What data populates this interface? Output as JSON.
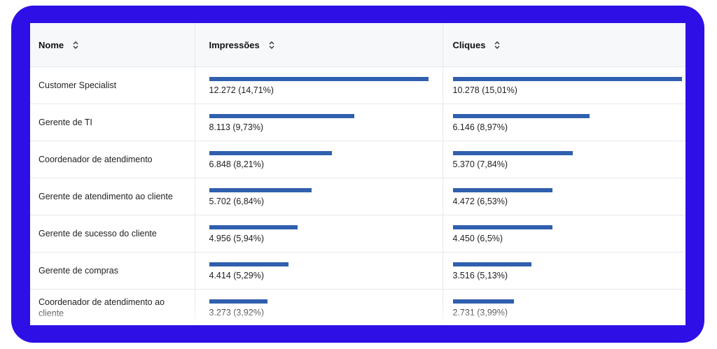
{
  "table": {
    "columns": [
      {
        "label": "Nome",
        "sort_icon": "sort-updown-icon"
      },
      {
        "label": "Impressões",
        "sort_icon": "sort-updown-icon"
      },
      {
        "label": "Cliques",
        "sort_icon": "sort-updown-icon"
      }
    ],
    "rows": [
      {
        "name": "Customer Specialist",
        "impressions": "12.272 (14,71%)",
        "impressions_pct": 14.71,
        "clicks": "10.278 (15,01%)",
        "clicks_pct": 15.01
      },
      {
        "name": "Gerente de TI",
        "impressions": "8.113 (9,73%)",
        "impressions_pct": 9.73,
        "clicks": "6.146 (8,97%)",
        "clicks_pct": 8.97
      },
      {
        "name": "Coordenador de atendimento",
        "impressions": "6.848 (8,21%)",
        "impressions_pct": 8.21,
        "clicks": "5.370 (7,84%)",
        "clicks_pct": 7.84
      },
      {
        "name": "Gerente de atendimento ao cliente",
        "impressions": "5.702 (6,84%)",
        "impressions_pct": 6.84,
        "clicks": "4.472 (6,53%)",
        "clicks_pct": 6.53
      },
      {
        "name": "Gerente de sucesso do cliente",
        "impressions": "4.956 (5,94%)",
        "impressions_pct": 5.94,
        "clicks": "4.450 (6,5%)",
        "clicks_pct": 6.5
      },
      {
        "name": "Gerente de compras",
        "impressions": "4.414 (5,29%)",
        "impressions_pct": 5.29,
        "clicks": "3.516 (5,13%)",
        "clicks_pct": 5.13
      },
      {
        "name": "Coordenador de atendimento ao cliente",
        "impressions": "3.273 (3,92%)",
        "impressions_pct": 3.92,
        "clicks": "2.731 (3,99%)",
        "clicks_pct": 3.99
      }
    ]
  },
  "colors": {
    "frame": "#2e0fe6",
    "bar": "#2f5fae",
    "header_bg": "#f6f8fa"
  }
}
